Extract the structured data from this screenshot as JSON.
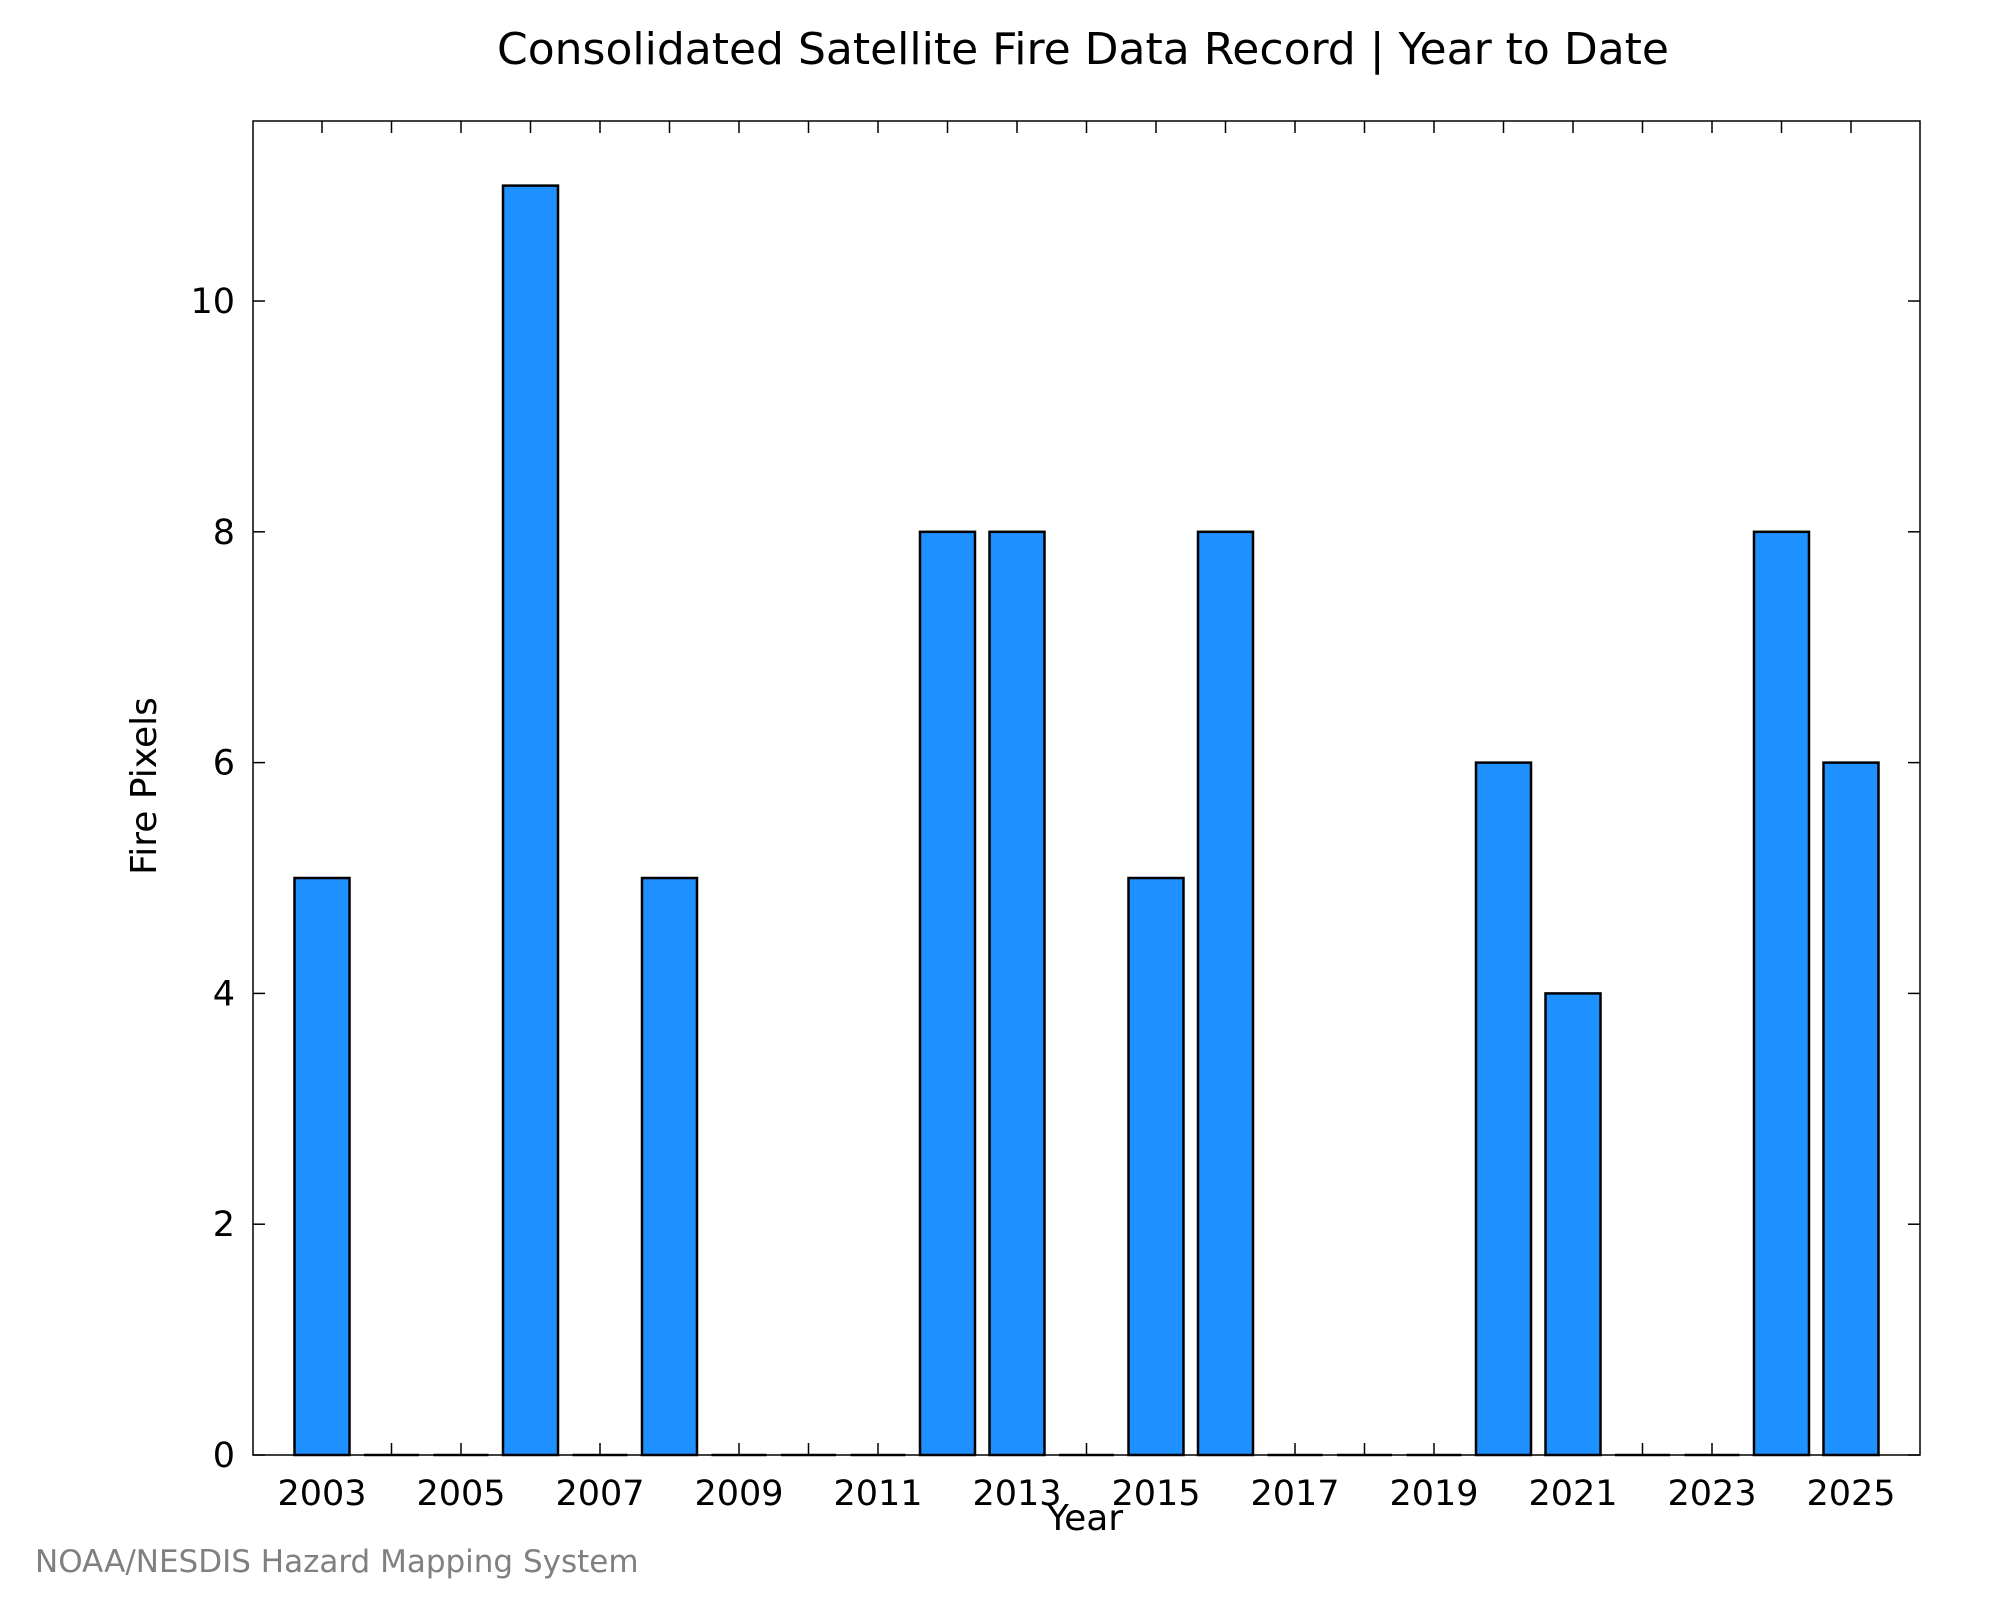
{
  "chart_data": {
    "type": "bar",
    "title": "Consolidated Satellite Fire Data Record | Year to Date",
    "xlabel": "Year",
    "ylabel": "Fire Pixels",
    "categories": [
      "2003",
      "2004",
      "2005",
      "2006",
      "2007",
      "2008",
      "2009",
      "2010",
      "2011",
      "2012",
      "2013",
      "2014",
      "2015",
      "2016",
      "2017",
      "2018",
      "2019",
      "2020",
      "2021",
      "2022",
      "2023",
      "2024",
      "2025"
    ],
    "values": [
      5,
      0,
      0,
      11,
      0,
      5,
      0,
      0,
      0,
      8,
      8,
      0,
      5,
      8,
      0,
      0,
      0,
      6,
      4,
      0,
      0,
      8,
      6
    ],
    "x_tick_labels": [
      "2003",
      "2005",
      "2007",
      "2009",
      "2011",
      "2013",
      "2015",
      "2017",
      "2019",
      "2021",
      "2023",
      "2025"
    ],
    "y_ticks": [
      0,
      2,
      4,
      6,
      8,
      10
    ],
    "ylim": [
      0,
      11.56
    ],
    "grid": false,
    "bar_color": "#1e90ff",
    "bar_edge_color": "#000000"
  },
  "footer": {
    "credit": "NOAA/NESDIS Hazard Mapping System"
  }
}
